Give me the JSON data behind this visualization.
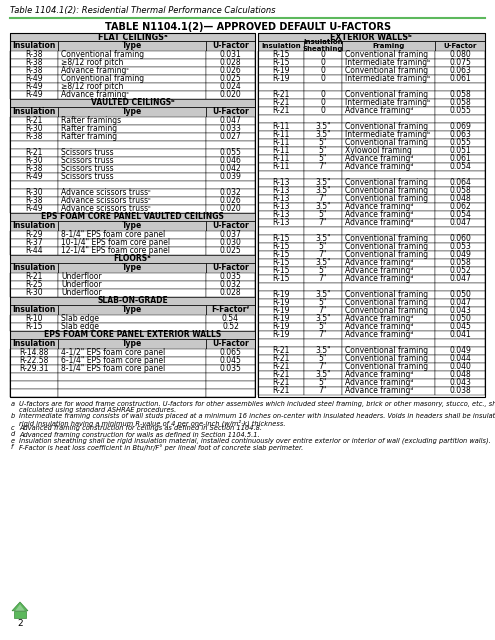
{
  "title_header": "Table 1104.1(2): Residential Thermal Performance Calculations",
  "title": "TABLE N1104.1(2)— APPROVED DEFAULT U-FACTORS",
  "left_table_header": "FLAT CEILINGSᵃ",
  "right_table_header": "EXTERIOR WALLSᵇ",
  "left_sections": [
    {
      "name": null,
      "rows": [
        [
          "R-38",
          "Conventional framing",
          "0.031"
        ],
        [
          "R-38",
          "≥8/12 roof pitch",
          "0.028"
        ],
        [
          "R-38",
          "Advance framingᶜ",
          "0.026"
        ],
        [
          "R-49",
          "Conventional framing",
          "0.025"
        ],
        [
          "R-49",
          "≥8/12 roof pitch",
          "0.024"
        ],
        [
          "R-49",
          "Advance framingᶜ",
          "0.020"
        ]
      ]
    },
    {
      "name": "VAULTED CEILINGSᵇ",
      "header_row": [
        "Insulation",
        "Type",
        "U-Factor"
      ],
      "rows": [
        [
          "R-21",
          "Rafter framings",
          "0.047"
        ],
        [
          "R-30",
          "Rafter framing",
          "0.033"
        ],
        [
          "R-38",
          "Rafter framing",
          "0.027"
        ],
        [
          "",
          "",
          ""
        ],
        [
          "R-21",
          "Scissors truss",
          "0.055"
        ],
        [
          "R-30",
          "Scissors truss",
          "0.046"
        ],
        [
          "R-38",
          "Scissors truss",
          "0.042"
        ],
        [
          "R-49",
          "Scissors truss",
          "0.039"
        ],
        [
          "",
          "",
          ""
        ],
        [
          "R-30",
          "Advance scissors trussᶜ",
          "0.032"
        ],
        [
          "R-38",
          "Advance scissors trussᶜ",
          "0.026"
        ],
        [
          "R-49",
          "Advance scissors trussᶜ",
          "0.020"
        ]
      ]
    },
    {
      "name": "EPS FOAM CORE PANEL VAULTED CEILINGS",
      "header_row": [
        "Insulation",
        "Type",
        "U-Factor"
      ],
      "rows": [
        [
          "R-29",
          "8-1/4\" EPS foam core panel",
          "0.037"
        ],
        [
          "R-37",
          "10-1/4\" EPS foam core panel",
          "0.030"
        ],
        [
          "R-44",
          "12-1/4\" EPS foam core panel",
          "0.025"
        ]
      ]
    },
    {
      "name": "FLOORSᵃ",
      "header_row": [
        "Insulation",
        "Type",
        "U-Factor"
      ],
      "rows": [
        [
          "R-21",
          "Underfloor",
          "0.035"
        ],
        [
          "R-25",
          "Underfloor",
          "0.032"
        ],
        [
          "R-30",
          "Underfloor",
          "0.028"
        ]
      ]
    },
    {
      "name": "SLAB-ON-GRADE",
      "header_row": [
        "Insulation",
        "Type",
        "F-Factorᶠ"
      ],
      "rows": [
        [
          "R-10",
          "Slab edge",
          "0.54"
        ],
        [
          "R-15",
          "Slab edge",
          "0.52"
        ]
      ]
    },
    {
      "name": "EPS FOAM CORE PANEL EXTERIOR WALLS",
      "header_row": [
        "Insulation",
        "Type",
        "U-Factor"
      ],
      "rows": [
        [
          "R-14.88",
          "4-1/2\" EPS foam core panel",
          "0.065"
        ],
        [
          "R-22.58",
          "6-1/4\" EPS foam core panel",
          "0.045"
        ],
        [
          "R-29.31",
          "8-1/4\" EPS foam core panel",
          "0.035"
        ]
      ]
    }
  ],
  "right_rows": [
    [
      "R-15",
      "0",
      "Conventional framing",
      "0.080"
    ],
    [
      "R-15",
      "0",
      "Intermediate framingᵇ",
      "0.075"
    ],
    [
      "R-19",
      "0",
      "Conventional framing",
      "0.063"
    ],
    [
      "R-19",
      "0",
      "Intermediate framingᵇ",
      "0.061"
    ],
    [
      "",
      "",
      "",
      ""
    ],
    [
      "R-21",
      "0",
      "Conventional framing",
      "0.058"
    ],
    [
      "R-21",
      "0",
      "Intermediate framingᵇ",
      "0.058"
    ],
    [
      "R-21",
      "0",
      "Advance framingᵈ",
      "0.055"
    ],
    [
      "",
      "",
      "",
      ""
    ],
    [
      "R-11",
      "3.5\"",
      "Conventional framing",
      "0.069"
    ],
    [
      "R-11",
      "3.5\"",
      "Intermediate framingᵇ",
      "0.063"
    ],
    [
      "R-11",
      "5\"",
      "Conventional framing",
      "0.055"
    ],
    [
      "R-11",
      "5\"",
      "Xylowool framing",
      "0.051"
    ],
    [
      "R-11",
      "5\"",
      "Advance framingᵈ",
      "0.061"
    ],
    [
      "R-11",
      "7\"",
      "Advance framingᵈ",
      "0.054"
    ],
    [
      "",
      "",
      "",
      ""
    ],
    [
      "R-13",
      "3.5\"",
      "Conventional framing",
      "0.064"
    ],
    [
      "R-13",
      "3.5\"",
      "Conventional framing",
      "0.058"
    ],
    [
      "R-13",
      "7\"",
      "Conventional framing",
      "0.048"
    ],
    [
      "R-13",
      "3.5\"",
      "Advance framingᵈ",
      "0.062"
    ],
    [
      "R-13",
      "5\"",
      "Advance framingᵈ",
      "0.054"
    ],
    [
      "R-13",
      "7\"",
      "Advance framingᵈ",
      "0.047"
    ],
    [
      "",
      "",
      "",
      ""
    ],
    [
      "R-15",
      "3.5\"",
      "Conventional framing",
      "0.060"
    ],
    [
      "R-15",
      "5\"",
      "Conventional framing",
      "0.053"
    ],
    [
      "R-15",
      "7\"",
      "Conventional framing",
      "0.049"
    ],
    [
      "R-15",
      "3.5\"",
      "Advance framingᵈ",
      "0.058"
    ],
    [
      "R-15",
      "5\"",
      "Advance framingᵈ",
      "0.052"
    ],
    [
      "R-15",
      "7\"",
      "Advance framingᵈ",
      "0.047"
    ],
    [
      "",
      "",
      "",
      ""
    ],
    [
      "R-19",
      "3.5\"",
      "Conventional framing",
      "0.050"
    ],
    [
      "R-19",
      "5\"",
      "Conventional framing",
      "0.047"
    ],
    [
      "R-19",
      "7\"",
      "Conventional framing",
      "0.043"
    ],
    [
      "R-19",
      "3.5\"",
      "Advance framingᵈ",
      "0.050"
    ],
    [
      "R-19",
      "5\"",
      "Advance framingᵈ",
      "0.045"
    ],
    [
      "R-19",
      "7\"",
      "Advance framingᵈ",
      "0.041"
    ],
    [
      "",
      "",
      "",
      ""
    ],
    [
      "R-21",
      "3.5\"",
      "Conventional framing",
      "0.049"
    ],
    [
      "R-21",
      "5\"",
      "Conventional framing",
      "0.044"
    ],
    [
      "R-21",
      "7\"",
      "Conventional framing",
      "0.040"
    ],
    [
      "R-21",
      "3.5\"",
      "Advance framingᵈ",
      "0.048"
    ],
    [
      "R-21",
      "5\"",
      "Advance framingᵈ",
      "0.043"
    ],
    [
      "R-21",
      "7\"",
      "Advance framingᵈ",
      "0.038"
    ]
  ],
  "footnotes": [
    [
      "a",
      "U-factors are for wood frame construction. U-factors for other assemblies which included steel framing, brick or other masonry, stucco, etc., shall be\ncalculated using standard ASHRAE procedures."
    ],
    [
      "b",
      "Intermediate framing consists of wall studs placed at a minimum 16 inches on-center with insulated headers. Voids in headers shall be insulated with\nrigid insulation having a minimum R-value of 4 per one-inch (w/m²·k) thickness."
    ],
    [
      "c",
      "Advanced framing construction for ceilings as defined in Section 1104.8."
    ],
    [
      "d",
      "Advanced framing construction for walls as defined in Section 1104.5.1."
    ],
    [
      "e",
      "Insulation sheathing shall be rigid insulation material, installed continuously over entire exterior or interior of wall (excluding partition walls)."
    ],
    [
      "f",
      "F-Factor is heat loss coefficient in Btu/hr/F° per lineal foot of concrete slab perimeter."
    ]
  ],
  "green_color": "#5cb85c",
  "header_bg": "#c8c8c8",
  "white": "#ffffff"
}
